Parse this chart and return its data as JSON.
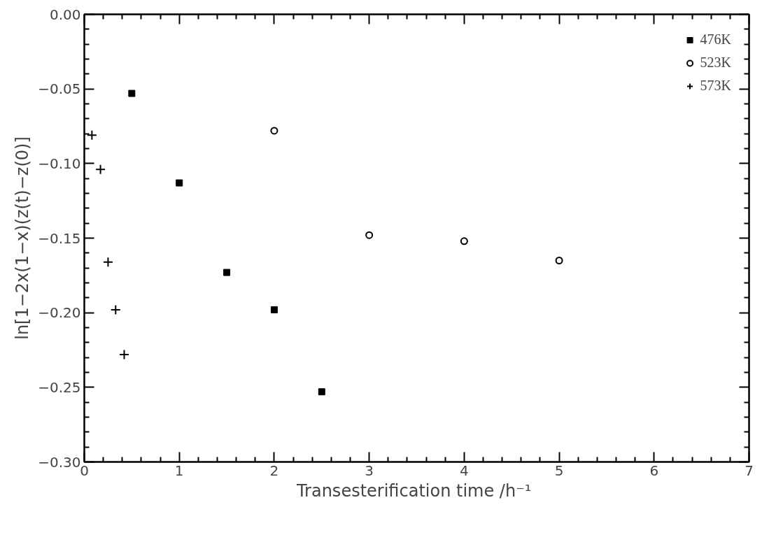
{
  "chart_data": {
    "type": "scatter",
    "xlabel": "Transesterification time  /h⁻¹",
    "ylabel": "ln[1−2x(1−x)(z(t)−z(0)]",
    "xlim": [
      0,
      7
    ],
    "ylim": [
      -0.3,
      0.0
    ],
    "xticks": [
      0,
      1,
      2,
      3,
      4,
      5,
      6,
      7
    ],
    "yticks": [
      {
        "value": -0.3,
        "label": "−0.30"
      },
      {
        "value": -0.25,
        "label": "−0.25"
      },
      {
        "value": -0.2,
        "label": "−0.20"
      },
      {
        "value": -0.15,
        "label": "−0.15"
      },
      {
        "value": -0.1,
        "label": "−0.10"
      },
      {
        "value": -0.05,
        "label": "−0.05"
      },
      {
        "value": 0.0,
        "label": "0.00"
      }
    ],
    "grid": false,
    "legend": "top right",
    "series": [
      {
        "name": "476K",
        "color": "#000000",
        "marker": "square",
        "x": [
          0.5,
          1.0,
          1.5,
          2.0,
          2.5
        ],
        "values": [
          -0.053,
          -0.113,
          -0.173,
          -0.198,
          -0.253
        ]
      },
      {
        "name": "523K",
        "color": "#000000",
        "marker": "circle",
        "x": [
          2.0,
          3.0,
          4.0,
          5.0
        ],
        "values": [
          -0.078,
          -0.148,
          -0.152,
          -0.165
        ]
      },
      {
        "name": "573K",
        "color": "#000000",
        "marker": "cross",
        "x": [
          0.08,
          0.17,
          0.25,
          0.33,
          0.42
        ],
        "values": [
          -0.081,
          -0.104,
          -0.166,
          -0.198,
          -0.228
        ]
      }
    ]
  }
}
